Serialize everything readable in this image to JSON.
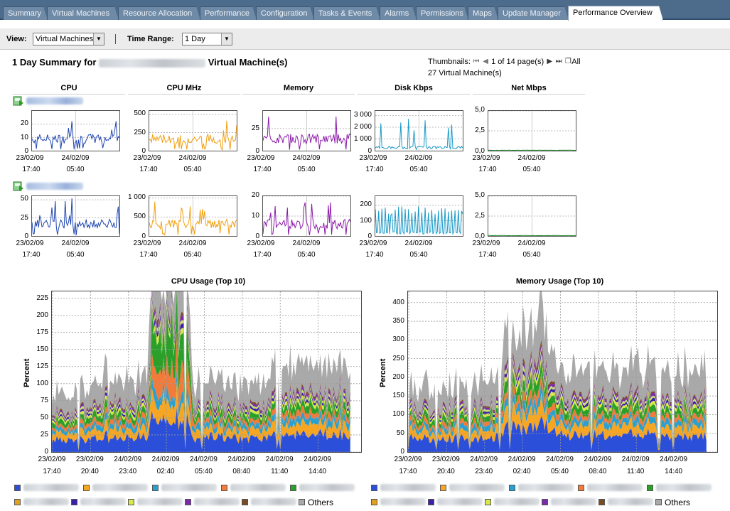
{
  "tabs": [
    {
      "label": "Summary",
      "active": false
    },
    {
      "label": "Virtual Machines",
      "active": false
    },
    {
      "label": "Resource Allocation",
      "active": false
    },
    {
      "label": "Performance",
      "active": false
    },
    {
      "label": "Configuration",
      "active": false
    },
    {
      "label": "Tasks & Events",
      "active": false
    },
    {
      "label": "Alarms",
      "active": false
    },
    {
      "label": "Permissions",
      "active": false
    },
    {
      "label": "Maps",
      "active": false
    },
    {
      "label": "Update Manager",
      "active": false
    },
    {
      "label": "Performance Overview",
      "active": true
    }
  ],
  "view": {
    "label": "View:",
    "value": "Virtual Machines"
  },
  "time_range": {
    "label": "Time Range:",
    "value": "1 Day"
  },
  "summary": {
    "prefix": "1 Day Summary for",
    "suffix": "Virtual Machine(s)"
  },
  "thumbnails": {
    "label": "Thumbnails:",
    "page_text": "1 of 14 page(s)",
    "all_label": "All",
    "vm_count_text": "27 Virtual Machine(s)"
  },
  "columns": [
    "CPU",
    "CPU MHz",
    "Memory",
    "Disk Kbps",
    "Net Mbps"
  ],
  "sparkline_x_labels": {
    "dates": [
      "23/02/09",
      "24/02/09"
    ],
    "times": [
      "17:40",
      "05:40"
    ]
  },
  "vm_rows": [
    {
      "icon": "vm-powered-on-icon",
      "charts": [
        {
          "metric": "CPU",
          "y_ticks": [
            "0",
            "10",
            "20"
          ],
          "ylim": [
            0,
            30
          ],
          "color": "#1f46b0"
        },
        {
          "metric": "CPU MHz",
          "y_ticks": [
            "0",
            "250",
            "500"
          ],
          "ylim": [
            0,
            550
          ],
          "color": "#f0a010"
        },
        {
          "metric": "Memory",
          "y_ticks": [
            "0",
            "25"
          ],
          "ylim": [
            0,
            45
          ],
          "color": "#8a1aa8"
        },
        {
          "metric": "Disk Kbps",
          "y_ticks": [
            "0",
            "1 000",
            "2 000",
            "3 000"
          ],
          "ylim": [
            0,
            3400
          ],
          "color": "#1a9ac8"
        },
        {
          "metric": "Net Mbps",
          "y_ticks": [
            "0,0",
            "2,5",
            "5,0"
          ],
          "ylim": [
            0,
            5
          ],
          "color": "#208a30"
        }
      ]
    },
    {
      "icon": "vm-powered-on-icon",
      "charts": [
        {
          "metric": "CPU",
          "y_ticks": [
            "0",
            "25",
            "50"
          ],
          "ylim": [
            0,
            55
          ],
          "color": "#1f46b0"
        },
        {
          "metric": "CPU MHz",
          "y_ticks": [
            "0",
            "500",
            "1 000"
          ],
          "ylim": [
            0,
            1050
          ],
          "color": "#f0a010"
        },
        {
          "metric": "Memory",
          "y_ticks": [
            "0",
            "10",
            "20"
          ],
          "ylim": [
            0,
            20
          ],
          "color": "#8a1aa8"
        },
        {
          "metric": "Disk Kbps",
          "y_ticks": [
            "0",
            "100",
            "200"
          ],
          "ylim": [
            0,
            260
          ],
          "color": "#1a9ac8"
        },
        {
          "metric": "Net Mbps",
          "y_ticks": [
            "0,0",
            "2,5",
            "5,0"
          ],
          "ylim": [
            0,
            5
          ],
          "color": "#208a30"
        }
      ]
    }
  ],
  "chart_data": [
    {
      "type": "area",
      "title": "CPU Usage (Top 10)",
      "ylabel": "Percent",
      "ylim": [
        0,
        235
      ],
      "y_ticks": [
        "0",
        "25",
        "50",
        "75",
        "100",
        "125",
        "150",
        "175",
        "200",
        "225"
      ],
      "x_dates": [
        "23/02/09",
        "23/02/09",
        "24/02/09",
        "24/02/09",
        "24/02/09",
        "24/02/09",
        "24/02/09",
        "24/02/09"
      ],
      "x_times": [
        "17:40",
        "20:40",
        "23:40",
        "02:40",
        "05:40",
        "08:40",
        "11:40",
        "14:40"
      ],
      "stacked": true,
      "grid": true,
      "series_colors": [
        "#2b4fd8",
        "#f6a623",
        "#2aa0d0",
        "#f27a3a",
        "#2aa02a",
        "#d8e84a",
        "#3a1fa8",
        "#c7e070",
        "#7a2aa8",
        "#7a4a20",
        "#a9a9a9"
      ],
      "profile": [
        {
          "t": 0,
          "total": 85
        },
        {
          "t": 0.2,
          "total": 110
        },
        {
          "t": 0.32,
          "total": 120
        },
        {
          "t": 0.33,
          "total": 215
        },
        {
          "t": 0.46,
          "total": 225
        },
        {
          "t": 0.47,
          "total": 110
        },
        {
          "t": 0.72,
          "total": 105
        },
        {
          "t": 0.73,
          "total": 135
        },
        {
          "t": 1,
          "total": 130
        }
      ]
    },
    {
      "type": "area",
      "title": "Memory Usage (Top 10)",
      "ylabel": "Percent",
      "ylim": [
        0,
        430
      ],
      "y_ticks": [
        "0",
        "50",
        "100",
        "150",
        "200",
        "250",
        "300",
        "350",
        "400"
      ],
      "x_dates": [
        "23/02/09",
        "23/02/09",
        "24/02/09",
        "24/02/09",
        "24/02/09",
        "24/02/09",
        "24/02/09",
        "24/02/09"
      ],
      "x_times": [
        "17:40",
        "20:40",
        "23:40",
        "02:40",
        "05:40",
        "08:40",
        "11:40",
        "14:40"
      ],
      "stacked": true,
      "grid": true,
      "series_colors": [
        "#2b4fd8",
        "#f6a623",
        "#2aa0d0",
        "#f27a3a",
        "#2aa02a",
        "#d8e84a",
        "#3a1fa8",
        "#c7e070",
        "#7a2aa8",
        "#7a4a20",
        "#a9a9a9"
      ],
      "profile": [
        {
          "t": 0,
          "total": 180
        },
        {
          "t": 0.3,
          "total": 200
        },
        {
          "t": 0.33,
          "total": 320
        },
        {
          "t": 0.46,
          "total": 370
        },
        {
          "t": 0.5,
          "total": 230
        },
        {
          "t": 0.75,
          "total": 230
        },
        {
          "t": 1,
          "total": 220
        }
      ]
    }
  ],
  "legend": {
    "others_label": "Others",
    "colors_row1": [
      "#2b4fd8",
      "#f6a623",
      "#2aa0d0",
      "#f27a3a",
      "#2aa02a"
    ],
    "colors_row2": [
      "#e0a020",
      "#3a1fa8",
      "#d8e84a",
      "#7a2aa8",
      "#7a4a20",
      "#a9a9a9"
    ]
  }
}
